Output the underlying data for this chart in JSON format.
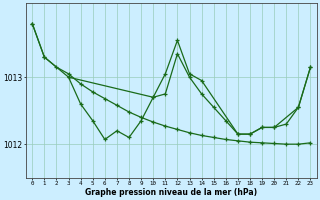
{
  "title": "Graphe pression niveau de la mer (hPa)",
  "bg_color": "#cceeff",
  "grid_color": "#99ccbb",
  "line_color": "#1a6b1a",
  "hours": [
    0,
    1,
    2,
    3,
    4,
    5,
    6,
    7,
    8,
    9,
    10,
    11,
    12,
    13,
    14,
    15,
    16,
    17,
    18,
    19,
    20,
    21,
    22,
    23
  ],
  "ylim_min": 1011.5,
  "ylim_max": 1014.1,
  "ytick_vals": [
    1012,
    1013
  ],
  "smooth_line": [
    1013.8,
    1013.3,
    1013.15,
    1013.05,
    1012.9,
    1012.78,
    1012.68,
    1012.58,
    1012.48,
    1012.4,
    1012.33,
    1012.27,
    1012.22,
    1012.17,
    1012.13,
    1012.1,
    1012.07,
    1012.05,
    1012.03,
    1012.02,
    1012.01,
    1012.0,
    1012.0,
    1012.02
  ],
  "jagged_x": [
    0,
    1,
    3,
    4,
    5,
    6,
    7,
    8,
    9,
    10,
    11,
    12,
    13,
    14,
    15,
    16,
    17,
    18,
    19,
    20,
    21,
    22,
    23
  ],
  "jagged_y": [
    1013.8,
    1013.3,
    1013.0,
    1012.6,
    1012.35,
    1012.07,
    1012.2,
    1012.1,
    1012.35,
    1012.7,
    1012.75,
    1013.35,
    1013.0,
    1012.75,
    1012.55,
    1012.35,
    1012.15,
    1012.15,
    1012.25,
    1012.25,
    1012.3,
    1012.55,
    1013.15
  ],
  "peak_x": [
    3,
    10,
    11,
    12,
    13,
    14,
    17,
    18,
    19,
    20,
    22,
    23
  ],
  "peak_y": [
    1013.0,
    1012.7,
    1013.05,
    1013.55,
    1013.05,
    1012.95,
    1012.15,
    1012.15,
    1012.25,
    1012.25,
    1012.55,
    1013.15
  ]
}
